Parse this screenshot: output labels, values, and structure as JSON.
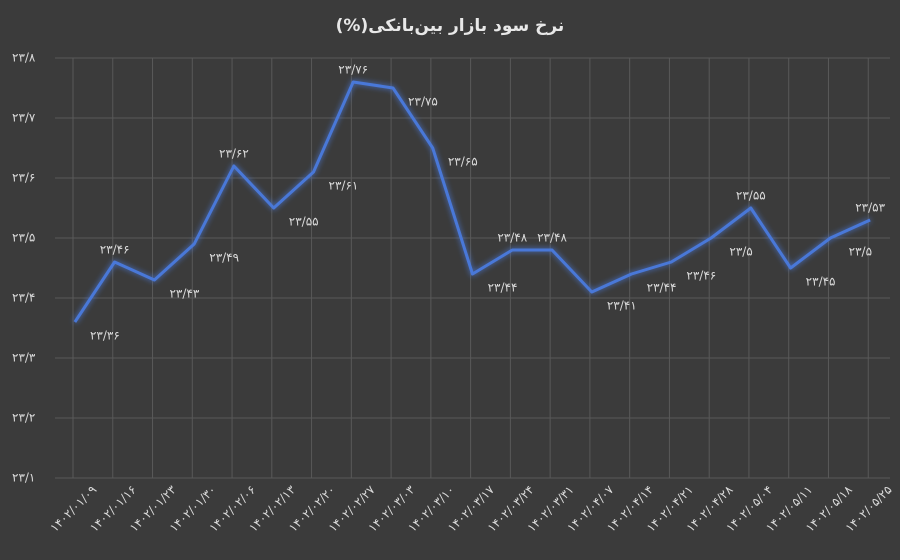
{
  "chart_data": {
    "type": "line",
    "title": "نرخ سود بازار بین‌بانکی(%)",
    "categories": [
      "۱۴۰۲/۰۱/۰۹",
      "۱۴۰۲/۰۱/۱۶",
      "۱۴۰۲/۰۱/۲۳",
      "۱۴۰۲/۰۱/۳۰",
      "۱۴۰۲/۰۲/۰۶",
      "۱۴۰۲/۰۲/۱۳",
      "۱۴۰۲/۰۲/۲۰",
      "۱۴۰۲/۰۲/۲۷",
      "۱۴۰۲/۰۳/۰۳",
      "۱۴۰۲/۰۳/۱۰",
      "۱۴۰۲/۰۳/۱۷",
      "۱۴۰۲/۰۳/۲۴",
      "۱۴۰۲/۰۳/۳۱",
      "۱۴۰۲/۰۴/۰۷",
      "۱۴۰۲/۰۴/۱۴",
      "۱۴۰۲/۰۴/۲۱",
      "۱۴۰۲/۰۴/۲۸",
      "۱۴۰۲/۰۵/۰۴",
      "۱۴۰۲/۰۵/۱۱",
      "۱۴۰۲/۰۵/۱۸",
      "۱۴۰۲/۰۵/۲۵"
    ],
    "values": [
      23.36,
      23.46,
      23.43,
      23.49,
      23.62,
      23.55,
      23.61,
      23.76,
      23.75,
      23.65,
      23.44,
      23.48,
      23.48,
      23.41,
      23.44,
      23.46,
      23.5,
      23.55,
      23.45,
      23.5,
      23.53
    ],
    "value_labels": [
      "۲۳/۳۶",
      "۲۳/۴۶",
      "۲۳/۴۳",
      "۲۳/۴۹",
      "۲۳/۶۲",
      "۲۳/۵۵",
      "۲۳/۶۱",
      "۲۳/۷۶",
      "۲۳/۷۵",
      "۲۳/۶۵",
      "۲۳/۴۴",
      "۲۳/۴۸",
      "۲۳/۴۸",
      "۲۳/۴۱",
      "۲۳/۴۴",
      "۲۳/۴۶",
      "۲۳/۵",
      "۲۳/۵۵",
      "۲۳/۴۵",
      "۲۳/۵",
      "۲۳/۵۳"
    ],
    "color": "#4a78d8",
    "ylim": [
      23.1,
      23.8
    ],
    "yticks": [
      {
        "value": 23.1,
        "label": "۲۳/۱"
      },
      {
        "value": 23.2,
        "label": "۲۳/۲"
      },
      {
        "value": 23.3,
        "label": "۲۳/۳"
      },
      {
        "value": 23.4,
        "label": "۲۳/۴"
      },
      {
        "value": 23.5,
        "label": "۲۳/۵"
      },
      {
        "value": 23.6,
        "label": "۲۳/۶"
      },
      {
        "value": 23.7,
        "label": "۲۳/۷"
      },
      {
        "value": 23.8,
        "label": "۲۳/۸"
      }
    ],
    "grid": true
  }
}
